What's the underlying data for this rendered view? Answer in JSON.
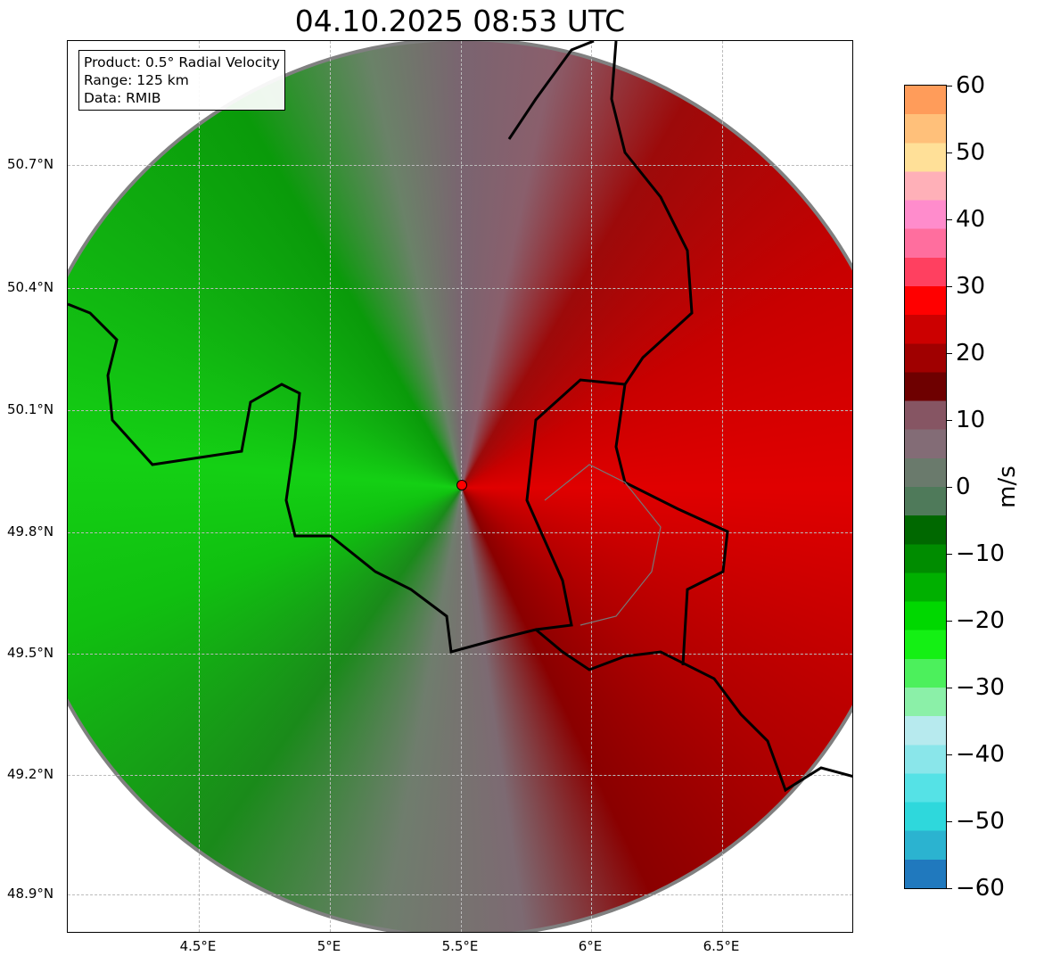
{
  "title": "04.10.2025 08:53 UTC",
  "info": {
    "lines": [
      "Product: 0.5° Radial Velocity",
      "Range: 125 km",
      "Data: RMIB"
    ]
  },
  "x_ticks": [
    "4.5°E",
    "5°E",
    "5.5°E",
    "6°E",
    "6.5°E"
  ],
  "y_ticks": [
    "50.7°N",
    "50.4°N",
    "50.1°N",
    "49.8°N",
    "49.5°N",
    "49.2°N",
    "48.9°N"
  ],
  "colorbar": {
    "label": "m/s",
    "range": [
      -60,
      60
    ],
    "ticks": [
      "60",
      "50",
      "40",
      "30",
      "20",
      "10",
      "0",
      "−10",
      "−20",
      "−30",
      "−40",
      "−50",
      "−60"
    ],
    "colors": [
      "#2079be",
      "#2bb3d0",
      "#2ed8dc",
      "#55e2e6",
      "#8ae6ea",
      "#b7eaee",
      "#8bf0a8",
      "#4cf05c",
      "#14f014",
      "#00d800",
      "#00b000",
      "#008c00",
      "#006800",
      "#4f7a5a",
      "#6a7a6c",
      "#836c76",
      "#865563",
      "#6e0000",
      "#a00000",
      "#cc0000",
      "#ff0000",
      "#ff4060",
      "#ff6e9e",
      "#ff8ccc",
      "#ffb0b8",
      "#ffe098",
      "#ffc07a",
      "#ff9c5a"
    ]
  },
  "radar_site_color": "#ff0000"
}
